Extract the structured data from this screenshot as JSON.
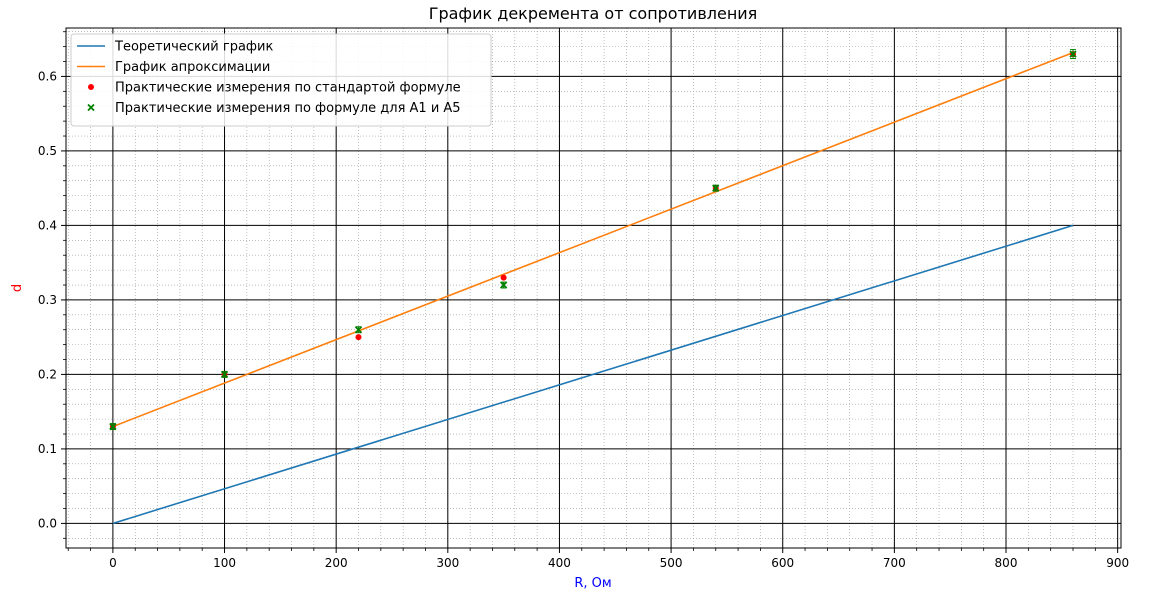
{
  "chart_data": {
    "type": "line",
    "title": "График декремента от сопротивления",
    "xlabel": "R, Ом",
    "ylabel": "d",
    "xlabel_color": "#0000ff",
    "ylabel_color": "#ff0000",
    "xlim": [
      -42,
      903
    ],
    "ylim": [
      -0.033,
      0.665
    ],
    "x_ticks": [
      0,
      100,
      200,
      300,
      400,
      500,
      600,
      700,
      800,
      900
    ],
    "y_ticks": [
      0.0,
      0.1,
      0.2,
      0.3,
      0.4,
      0.5,
      0.6
    ],
    "x_tick_labels": [
      "0",
      "100",
      "200",
      "300",
      "400",
      "500",
      "600",
      "700",
      "800",
      "900"
    ],
    "y_tick_labels": [
      "0.0",
      "0.1",
      "0.2",
      "0.3",
      "0.4",
      "0.5",
      "0.6"
    ],
    "x_minor_step": 20,
    "y_minor_step": 0.02,
    "grid": "major black, minor dotted",
    "legend_position": "top-left",
    "series": [
      {
        "name": "Теоретический график",
        "kind": "line",
        "color": "#1f77b4",
        "x": [
          0,
          860
        ],
        "y": [
          0.0,
          0.4
        ]
      },
      {
        "name": "График апроксимации",
        "kind": "line",
        "color": "#ff7f0e",
        "x": [
          0,
          860
        ],
        "y": [
          0.13,
          0.632
        ]
      },
      {
        "name": "Практические измерения по стандартой формуле",
        "kind": "scatter",
        "marker": "circle",
        "color": "#ff0000",
        "x": [
          0,
          100,
          220,
          350,
          540,
          860
        ],
        "y": [
          0.13,
          0.2,
          0.25,
          0.33,
          0.45,
          0.63
        ]
      },
      {
        "name": "Практические измерения по формуле для A1 и A5",
        "kind": "scatter",
        "marker": "x",
        "color": "#008000",
        "x": [
          0,
          100,
          220,
          350,
          540,
          860
        ],
        "y": [
          0.13,
          0.2,
          0.26,
          0.32,
          0.45,
          0.63
        ],
        "yerr": [
          0.004,
          0.004,
          0.004,
          0.004,
          0.004,
          0.006
        ]
      }
    ]
  }
}
